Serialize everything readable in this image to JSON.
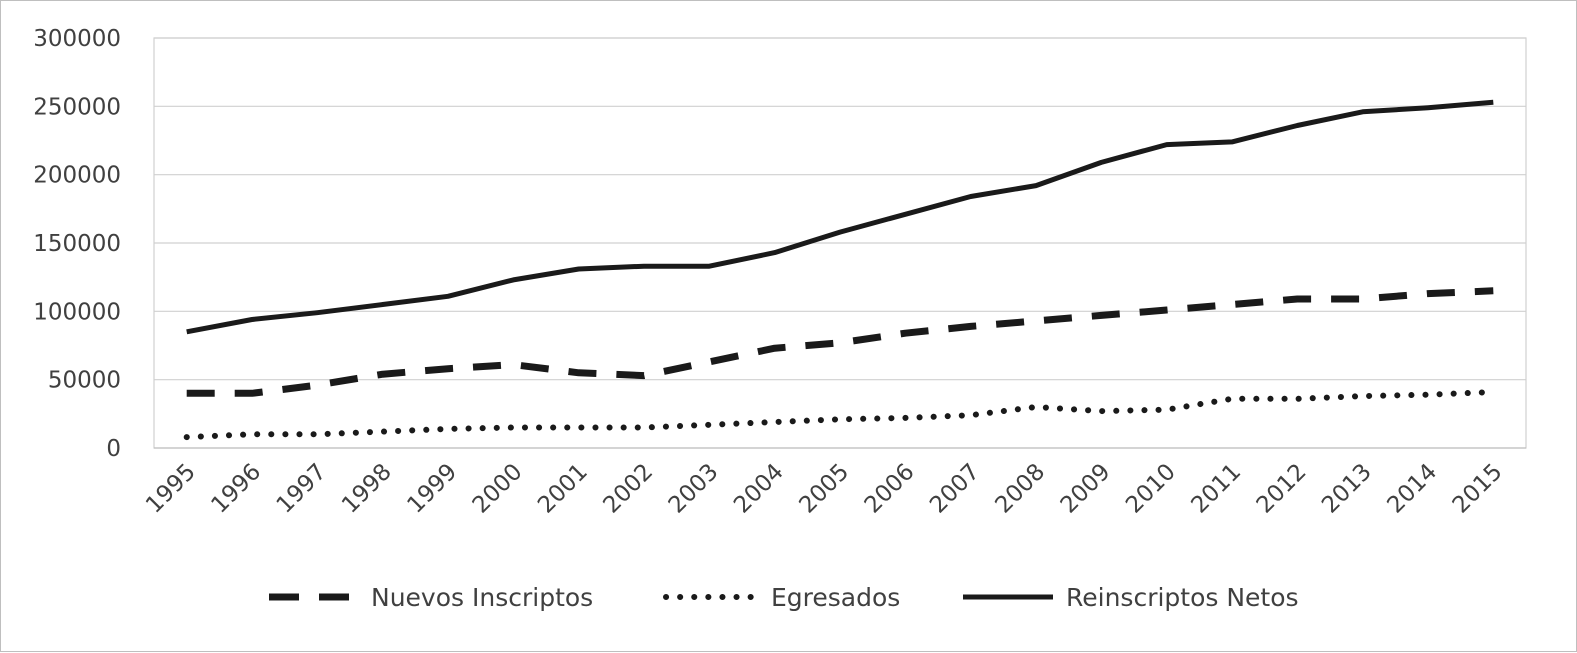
{
  "chart_data": {
    "type": "line",
    "x": [
      "1995",
      "1996",
      "1997",
      "1998",
      "1999",
      "2000",
      "2001",
      "2002",
      "2003",
      "2004",
      "2005",
      "2006",
      "2007",
      "2008",
      "2009",
      "2010",
      "2011",
      "2012",
      "2013",
      "2014",
      "2015"
    ],
    "ylim": [
      0,
      300000
    ],
    "yticks": [
      0,
      50000,
      100000,
      150000,
      200000,
      250000,
      300000
    ],
    "ytick_labels": [
      "0",
      "50000",
      "100000",
      "150000",
      "200000",
      "250000",
      "300000"
    ],
    "grid": true,
    "legend_position": "bottom",
    "series": [
      {
        "name": "Nuevos Inscriptos",
        "style": "dashed",
        "color": "#1a1a1a",
        "values": [
          40000,
          40000,
          46000,
          54000,
          58000,
          61000,
          55000,
          53000,
          63000,
          73000,
          77000,
          84000,
          89000,
          93000,
          97000,
          101000,
          105000,
          109000,
          109000,
          113000,
          115000
        ]
      },
      {
        "name": "Egresados",
        "style": "dotted",
        "color": "#1a1a1a",
        "values": [
          8000,
          10000,
          10000,
          12000,
          14000,
          15000,
          15000,
          15000,
          17000,
          19000,
          21000,
          22000,
          24000,
          30000,
          27000,
          28000,
          36000,
          36000,
          38000,
          39000,
          41000
        ]
      },
      {
        "name": "Reinscriptos Netos",
        "style": "solid",
        "color": "#1a1a1a",
        "values": [
          85000,
          94000,
          99000,
          105000,
          111000,
          123000,
          131000,
          133000,
          133000,
          143000,
          158000,
          171000,
          184000,
          192000,
          209000,
          222000,
          224000,
          236000,
          246000,
          249000,
          253000
        ]
      }
    ]
  }
}
